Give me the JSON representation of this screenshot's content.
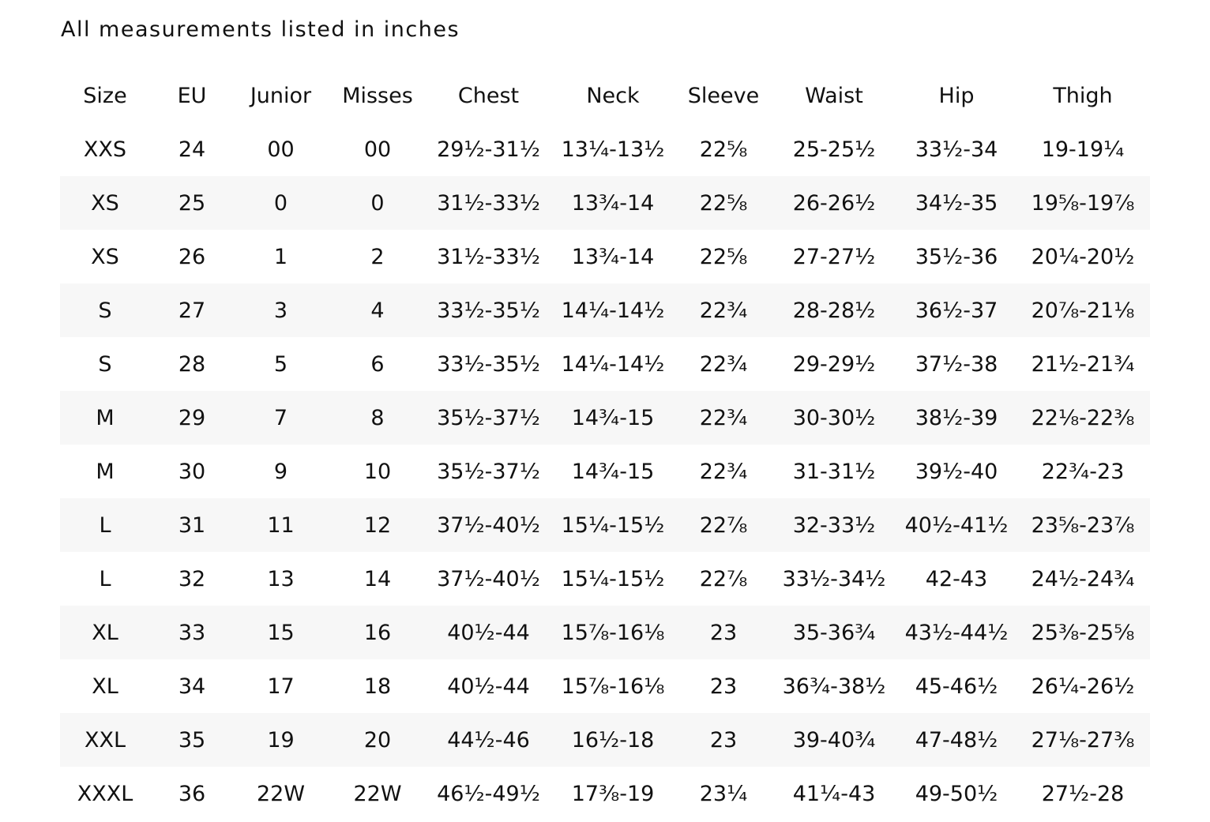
{
  "title": "All measurements listed in inches",
  "columns": [
    "Size",
    "EU",
    "Junior",
    "Misses",
    "Chest",
    "Neck",
    "Sleeve",
    "Waist",
    "Hip",
    "Thigh"
  ],
  "rows": [
    [
      "XXS",
      "24",
      "00",
      "00",
      "29½-31½",
      "13¼-13½",
      "22⅝",
      "25-25½",
      "33½-34",
      "19-19¼"
    ],
    [
      "XS",
      "25",
      "0",
      "0",
      "31½-33½",
      "13¾-14",
      "22⅝",
      "26-26½",
      "34½-35",
      "19⅝-19⅞"
    ],
    [
      "XS",
      "26",
      "1",
      "2",
      "31½-33½",
      "13¾-14",
      "22⅝",
      "27-27½",
      "35½-36",
      "20¼-20½"
    ],
    [
      "S",
      "27",
      "3",
      "4",
      "33½-35½",
      "14¼-14½",
      "22¾",
      "28-28½",
      "36½-37",
      "20⅞-21⅛"
    ],
    [
      "S",
      "28",
      "5",
      "6",
      "33½-35½",
      "14¼-14½",
      "22¾",
      "29-29½",
      "37½-38",
      "21½-21¾"
    ],
    [
      "M",
      "29",
      "7",
      "8",
      "35½-37½",
      "14¾-15",
      "22¾",
      "30-30½",
      "38½-39",
      "22⅛-22⅜"
    ],
    [
      "M",
      "30",
      "9",
      "10",
      "35½-37½",
      "14¾-15",
      "22¾",
      "31-31½",
      "39½-40",
      "22¾-23"
    ],
    [
      "L",
      "31",
      "11",
      "12",
      "37½-40½",
      "15¼-15½",
      "22⅞",
      "32-33½",
      "40½-41½",
      "23⅝-23⅞"
    ],
    [
      "L",
      "32",
      "13",
      "14",
      "37½-40½",
      "15¼-15½",
      "22⅞",
      "33½-34½",
      "42-43",
      "24½-24¾"
    ],
    [
      "XL",
      "33",
      "15",
      "16",
      "40½-44",
      "15⅞-16⅛",
      "23",
      "35-36¾",
      "43½-44½",
      "25⅜-25⅝"
    ],
    [
      "XL",
      "34",
      "17",
      "18",
      "40½-44",
      "15⅞-16⅛",
      "23",
      "36¾-38½",
      "45-46½",
      "26¼-26½"
    ],
    [
      "XXL",
      "35",
      "19",
      "20",
      "44½-46",
      "16½-18",
      "23",
      "39-40¾",
      "47-48½",
      "27⅛-27⅜"
    ],
    [
      "XXXL",
      "36",
      "22W",
      "22W",
      "46½-49½",
      "17⅜-19",
      "23¼",
      "41¼-43",
      "49-50½",
      "27½-28"
    ]
  ]
}
